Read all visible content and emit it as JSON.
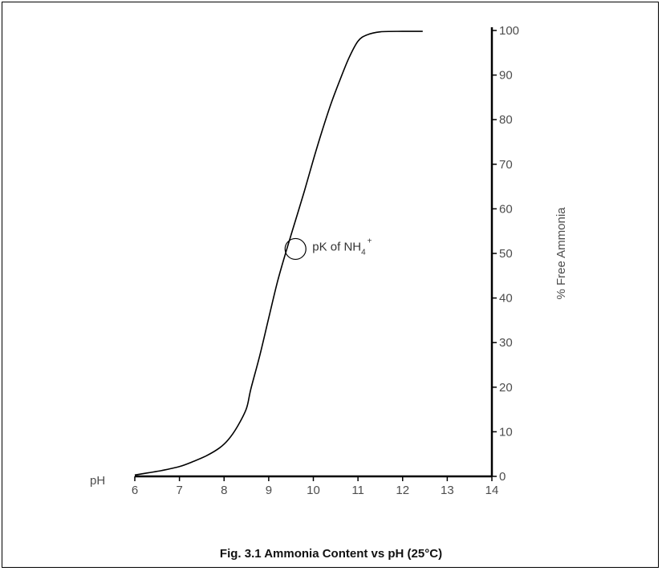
{
  "caption": "Fig. 3.1  Ammonia Content vs pH (25°C)",
  "chart_data": {
    "type": "line",
    "title": "Fig. 3.1  Ammonia Content vs pH (25°C)",
    "xlabel": "pH",
    "ylabel": "% Free Ammonia",
    "xlim": [
      6,
      14
    ],
    "ylim": [
      0,
      100
    ],
    "x_ticks": [
      "6",
      "7",
      "8",
      "9",
      "10",
      "11",
      "12",
      "13",
      "14"
    ],
    "y_ticks": [
      "0",
      "10",
      "20",
      "30",
      "40",
      "50",
      "60",
      "70",
      "80",
      "90",
      "100"
    ],
    "y_axis_position": "right",
    "grid": false,
    "series": [
      {
        "x": [
          6.0,
          6.3,
          6.6,
          7.0,
          7.3,
          7.6,
          7.9,
          8.1,
          8.3,
          8.5,
          8.6,
          8.8,
          9.0,
          9.2,
          9.4,
          9.6,
          9.8,
          10.0,
          10.2,
          10.4,
          10.6,
          10.8,
          11.0,
          11.2,
          11.5,
          12.0,
          12.45
        ],
        "y": [
          0.3,
          0.8,
          1.3,
          2.2,
          3.3,
          4.6,
          6.4,
          8.3,
          11.2,
          15.2,
          19.6,
          27.1,
          35.5,
          43.8,
          50.8,
          57.4,
          64.0,
          71.0,
          77.6,
          83.7,
          89.0,
          93.9,
          97.6,
          99.0,
          99.7,
          99.8,
          99.8
        ],
        "color": "#000000"
      }
    ],
    "annotations": [
      {
        "text": "pK of NH",
        "subscript": "4",
        "superscript": "+",
        "x": 9.6,
        "y": 51,
        "marker": "circle"
      }
    ]
  }
}
